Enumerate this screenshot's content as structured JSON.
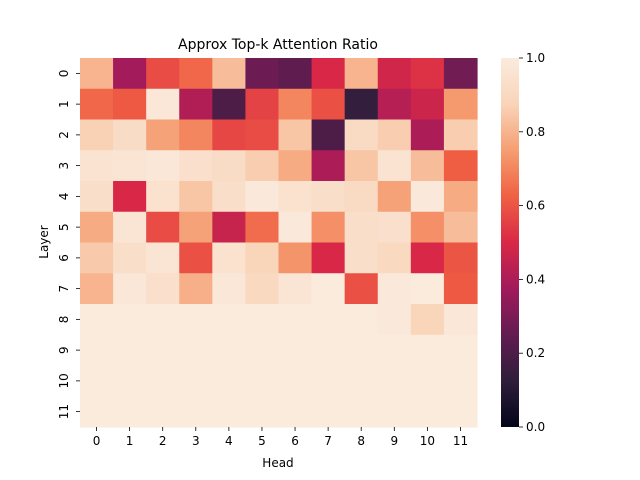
{
  "chart_data": {
    "type": "heatmap",
    "title": "Approx Top-k Attention Ratio",
    "xlabel": "Head",
    "ylabel": "Layer",
    "x_categories": [
      "0",
      "1",
      "2",
      "3",
      "4",
      "5",
      "6",
      "7",
      "8",
      "9",
      "10",
      "11"
    ],
    "y_categories": [
      "0",
      "1",
      "2",
      "3",
      "4",
      "5",
      "6",
      "7",
      "8",
      "9",
      "10",
      "11"
    ],
    "values": [
      [
        0.8,
        0.38,
        0.58,
        0.64,
        0.82,
        0.27,
        0.24,
        0.5,
        0.8,
        0.48,
        0.52,
        0.28
      ],
      [
        0.64,
        0.61,
        0.98,
        0.41,
        0.2,
        0.56,
        0.7,
        0.59,
        0.14,
        0.42,
        0.47,
        0.74
      ],
      [
        0.87,
        0.92,
        0.76,
        0.7,
        0.57,
        0.58,
        0.84,
        0.2,
        0.91,
        0.86,
        0.4,
        0.86
      ],
      [
        0.96,
        0.97,
        0.98,
        0.94,
        0.92,
        0.86,
        0.78,
        0.4,
        0.84,
        0.96,
        0.82,
        0.62
      ],
      [
        0.93,
        0.5,
        0.95,
        0.84,
        0.93,
        0.99,
        0.95,
        0.93,
        0.91,
        0.76,
        0.99,
        0.78
      ],
      [
        0.78,
        0.97,
        0.58,
        0.76,
        0.46,
        0.65,
        0.99,
        0.72,
        0.93,
        0.94,
        0.72,
        0.82
      ],
      [
        0.85,
        0.93,
        0.97,
        0.59,
        0.95,
        0.88,
        0.73,
        0.5,
        0.93,
        0.9,
        0.5,
        0.6
      ],
      [
        0.8,
        0.98,
        0.94,
        0.79,
        0.98,
        0.9,
        0.97,
        1.0,
        0.59,
        0.99,
        1.0,
        0.61
      ],
      [
        1.0,
        1.0,
        1.0,
        1.0,
        1.0,
        1.0,
        1.0,
        1.0,
        1.0,
        0.99,
        0.88,
        0.98
      ],
      [
        1.0,
        1.0,
        1.0,
        1.0,
        1.0,
        1.0,
        1.0,
        1.0,
        1.0,
        1.0,
        1.0,
        1.0
      ],
      [
        1.0,
        1.0,
        1.0,
        1.0,
        1.0,
        1.0,
        1.0,
        1.0,
        1.0,
        1.0,
        1.0,
        1.0
      ],
      [
        1.0,
        1.0,
        1.0,
        1.0,
        1.0,
        1.0,
        1.0,
        1.0,
        1.0,
        1.0,
        1.0,
        1.0
      ]
    ],
    "vmin": 0.0,
    "vmax": 1.0,
    "colormap": "rocket",
    "colorbar_ticks": [
      "0.0",
      "0.2",
      "0.4",
      "0.6",
      "0.8",
      "1.0"
    ],
    "colorbar_tick_values": [
      0.0,
      0.2,
      0.4,
      0.6,
      0.8,
      1.0
    ],
    "colormap_stops": [
      "#03051a",
      "#2e1e3b",
      "#621c51",
      "#a11a5b",
      "#d92847",
      "#f06043",
      "#f59e72",
      "#f9d4b9",
      "#faebdd"
    ],
    "grid": false,
    "colorbar_placement": "right"
  }
}
